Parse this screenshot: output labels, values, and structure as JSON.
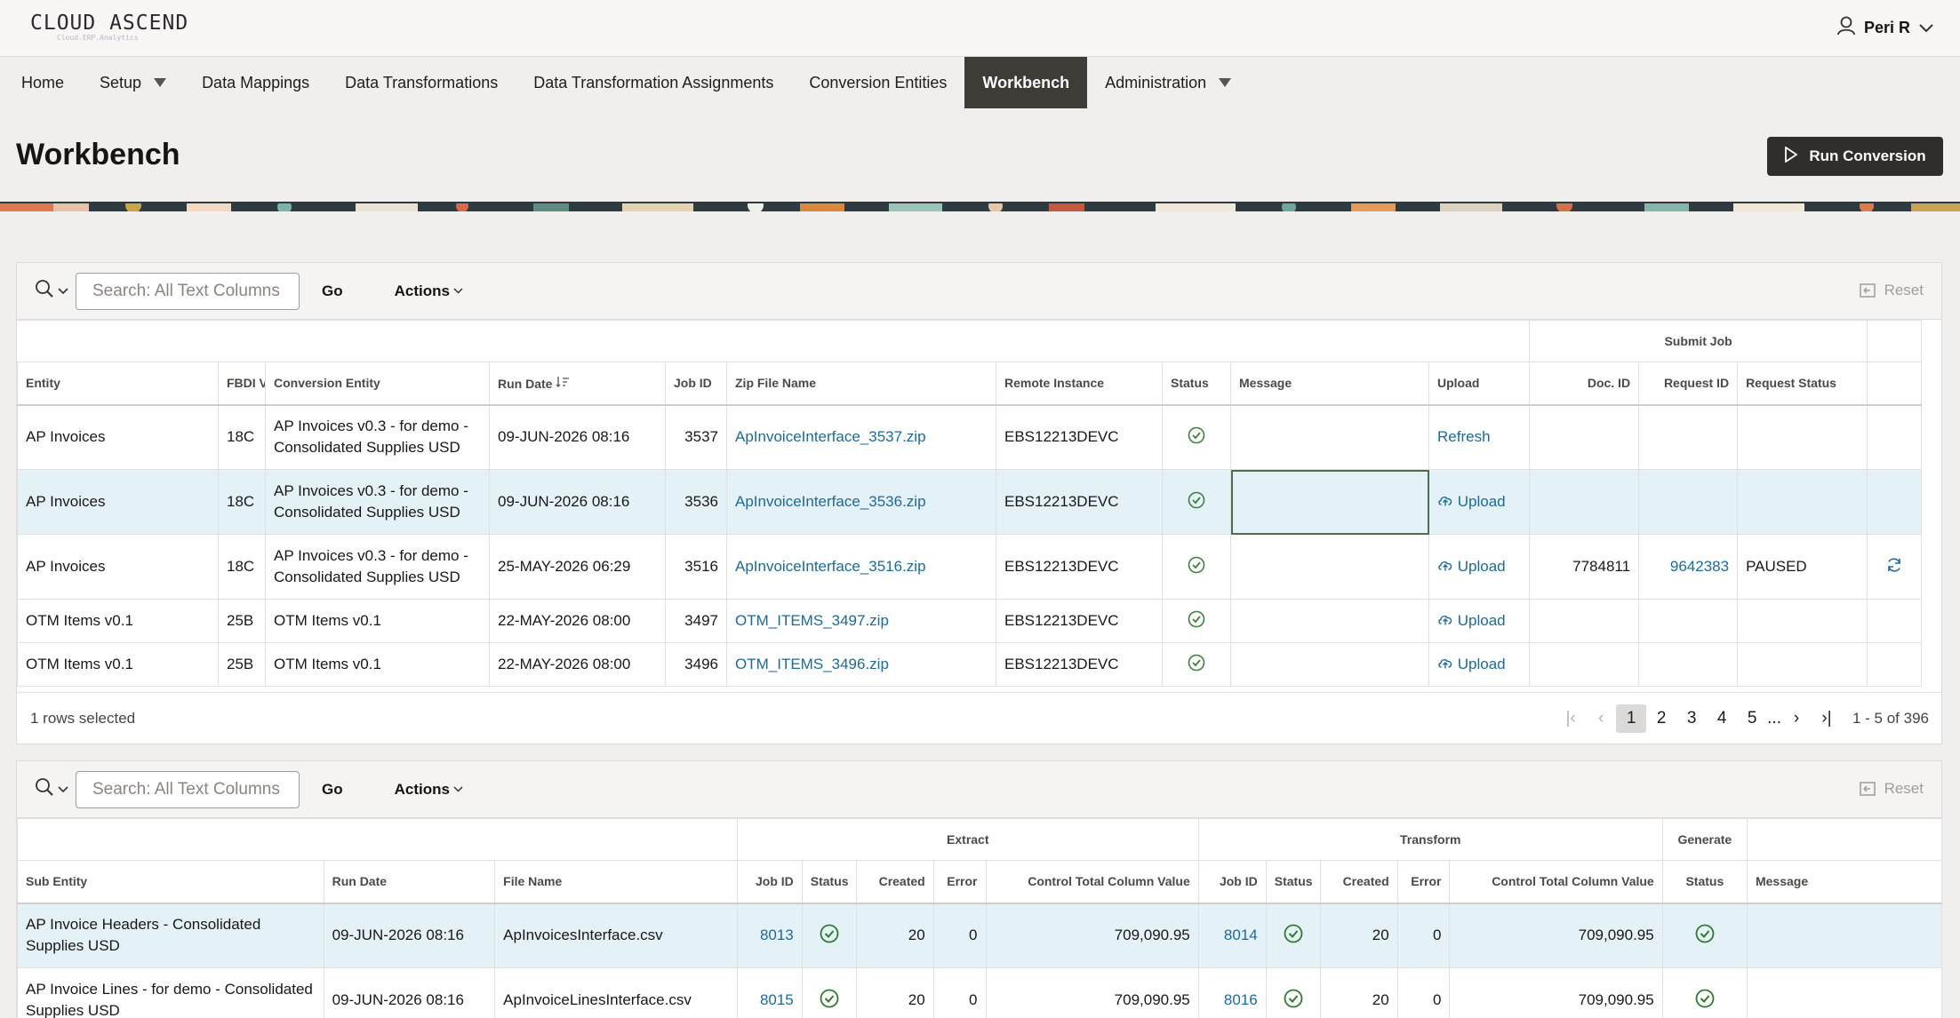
{
  "app": {
    "logo": "CLOUD ASCEND",
    "logo_sub": "Cloud.ERP.Analytics",
    "user": "Peri R"
  },
  "nav": [
    {
      "label": "Home"
    },
    {
      "label": "Setup"
    },
    {
      "label": "Data Mappings"
    },
    {
      "label": "Data Transformations"
    },
    {
      "label": "Data Transformation Assignments"
    },
    {
      "label": "Conversion Entities"
    },
    {
      "label": "Workbench"
    },
    {
      "label": "Administration"
    }
  ],
  "page": {
    "title": "Workbench",
    "run_button": "Run Conversion"
  },
  "report1": {
    "search_placeholder": "Search: All Text Columns",
    "go": "Go",
    "actions": "Actions",
    "reset": "Reset",
    "group_header": "Submit Job",
    "columns": [
      "Entity",
      "FBDI V",
      "Conversion Entity",
      "Run Date",
      "Job ID",
      "Zip File Name",
      "Remote Instance",
      "Status",
      "Message",
      "Upload",
      "Doc. ID",
      "Request ID",
      "Request Status"
    ],
    "rows": [
      {
        "entity": "AP Invoices",
        "fbdi": "18C",
        "conv": "AP Invoices v0.3 - for demo - Consolidated Supplies USD",
        "run_date": "09-JUN-2026 08:16",
        "job_id": "3537",
        "zip": "ApInvoiceInterface_3537.zip",
        "remote": "EBS12213DEVC",
        "upload": "Refresh",
        "doc_id": "",
        "request_id": "",
        "request_status": ""
      },
      {
        "entity": "AP Invoices",
        "fbdi": "18C",
        "conv": "AP Invoices v0.3 - for demo - Consolidated Supplies USD",
        "run_date": "09-JUN-2026 08:16",
        "job_id": "3536",
        "zip": "ApInvoiceInterface_3536.zip",
        "remote": "EBS12213DEVC",
        "upload": "Upload",
        "doc_id": "",
        "request_id": "",
        "request_status": ""
      },
      {
        "entity": "AP Invoices",
        "fbdi": "18C",
        "conv": "AP Invoices v0.3 - for demo - Consolidated Supplies USD",
        "run_date": "25-MAY-2026 06:29",
        "job_id": "3516",
        "zip": "ApInvoiceInterface_3516.zip",
        "remote": "EBS12213DEVC",
        "upload": "Upload",
        "doc_id": "7784811",
        "request_id": "9642383",
        "request_status": "PAUSED"
      },
      {
        "entity": "OTM Items v0.1",
        "fbdi": "25B",
        "conv": "OTM Items v0.1",
        "run_date": "22-MAY-2026 08:00",
        "job_id": "3497",
        "zip": "OTM_ITEMS_3497.zip",
        "remote": "EBS12213DEVC",
        "upload": "Upload",
        "doc_id": "",
        "request_id": "",
        "request_status": ""
      },
      {
        "entity": "OTM Items v0.1",
        "fbdi": "25B",
        "conv": "OTM Items v0.1",
        "run_date": "22-MAY-2026 08:00",
        "job_id": "3496",
        "zip": "OTM_ITEMS_3496.zip",
        "remote": "EBS12213DEVC",
        "upload": "Upload",
        "doc_id": "",
        "request_id": "",
        "request_status": ""
      }
    ],
    "footer": {
      "selected": "1 rows selected",
      "pages": [
        "1",
        "2",
        "3",
        "4",
        "5"
      ],
      "ellipsis": "...",
      "range": "1 - 5 of 396"
    }
  },
  "report2": {
    "search_placeholder": "Search: All Text Columns",
    "go": "Go",
    "actions": "Actions",
    "reset": "Reset",
    "groups": [
      "Extract",
      "Transform",
      "Generate"
    ],
    "columns": [
      "Sub Entity",
      "Run Date",
      "File Name",
      "Job ID",
      "Status",
      "Created",
      "Error",
      "Control Total Column Value",
      "Job ID",
      "Status",
      "Created",
      "Error",
      "Control Total Column Value",
      "Status",
      "Message"
    ],
    "rows": [
      {
        "sub_entity": "AP Invoice Headers - Consolidated Supplies USD",
        "run_date": "09-JUN-2026 08:16",
        "file": "ApInvoicesInterface.csv",
        "ex_job": "8013",
        "ex_created": "20",
        "ex_error": "0",
        "ex_total": "709,090.95",
        "tr_job": "8014",
        "tr_created": "20",
        "tr_error": "0",
        "tr_total": "709,090.95"
      },
      {
        "sub_entity": "AP Invoice Lines - for demo - Consolidated Supplies USD",
        "run_date": "09-JUN-2026 08:16",
        "file": "ApInvoiceLinesInterface.csv",
        "ex_job": "8015",
        "ex_created": "20",
        "ex_error": "0",
        "ex_total": "709,090.95",
        "tr_job": "8016",
        "tr_created": "20",
        "tr_error": "0",
        "tr_total": "709,090.95"
      }
    ]
  },
  "colors": {
    "accent_dark": "#312d2a",
    "link": "#1c6a9a",
    "status_ok": "#3f7f3f",
    "selected_row": "#e4f1f7"
  }
}
